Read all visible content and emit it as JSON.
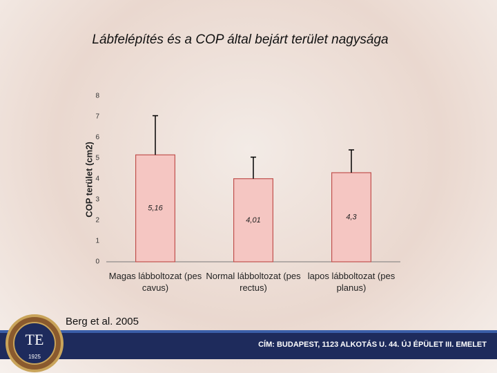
{
  "chart_data": {
    "type": "bar",
    "title": "Lábfelépítés és a COP által bejárt terület nagysága",
    "y_label": "COP terület (cm2)",
    "categories": [
      "Magas lábboltozat (pes cavus)",
      "Normal lábboltozat (pes rectus)",
      "lapos lábboltozat (pes planus)"
    ],
    "values": [
      5.16,
      4.01,
      4.3
    ],
    "value_labels": [
      "5,16",
      "4,01",
      "4,3"
    ],
    "errors": [
      1.89,
      1.04,
      1.1
    ],
    "color": "#f5c6c2",
    "edge_color": "#c0504d",
    "ylim": [
      0,
      8
    ],
    "yticks": [
      0,
      1,
      2,
      3,
      4,
      5,
      6,
      7,
      8
    ]
  },
  "footer": {
    "citation": "Berg et al. 2005",
    "address": "CÍM: BUDAPEST, 1123 ALKOTÁS U. 44. ÚJ ÉPÜLET III. EMELET",
    "logo_text": "TE",
    "logo_year": "1925"
  }
}
